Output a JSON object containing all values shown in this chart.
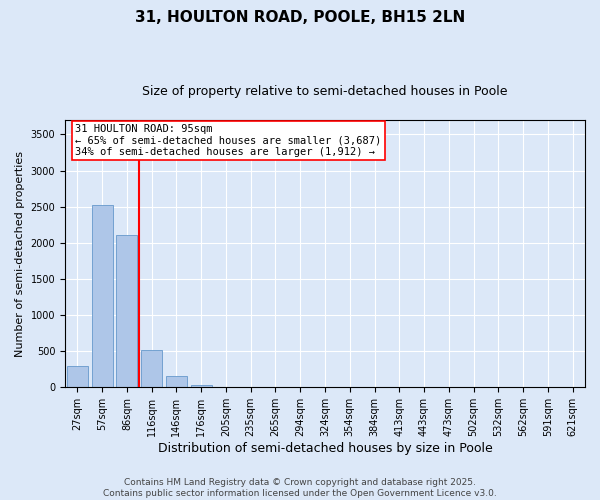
{
  "title": "31, HOULTON ROAD, POOLE, BH15 2LN",
  "subtitle": "Size of property relative to semi-detached houses in Poole",
  "xlabel": "Distribution of semi-detached houses by size in Poole",
  "ylabel": "Number of semi-detached properties",
  "categories": [
    "27sqm",
    "57sqm",
    "86sqm",
    "116sqm",
    "146sqm",
    "176sqm",
    "205sqm",
    "235sqm",
    "265sqm",
    "294sqm",
    "324sqm",
    "354sqm",
    "384sqm",
    "413sqm",
    "443sqm",
    "473sqm",
    "502sqm",
    "532sqm",
    "562sqm",
    "591sqm",
    "621sqm"
  ],
  "values": [
    290,
    2530,
    2110,
    510,
    155,
    30,
    0,
    0,
    0,
    0,
    0,
    0,
    0,
    0,
    0,
    0,
    0,
    0,
    0,
    0,
    0
  ],
  "bar_color": "#aec6e8",
  "bar_edge_color": "#6699cc",
  "vline_color": "red",
  "vline_x_index": 2,
  "annotation_text_line1": "31 HOULTON ROAD: 95sqm",
  "annotation_text_line2": "← 65% of semi-detached houses are smaller (3,687)",
  "annotation_text_line3": "34% of semi-detached houses are larger (1,912) →",
  "ylim": [
    0,
    3700
  ],
  "yticks": [
    0,
    500,
    1000,
    1500,
    2000,
    2500,
    3000,
    3500
  ],
  "bg_color": "#dce8f8",
  "plot_bg_color": "#dce8f8",
  "footer_line1": "Contains HM Land Registry data © Crown copyright and database right 2025.",
  "footer_line2": "Contains public sector information licensed under the Open Government Licence v3.0.",
  "title_fontsize": 11,
  "subtitle_fontsize": 9,
  "xlabel_fontsize": 9,
  "ylabel_fontsize": 8,
  "footer_fontsize": 6.5,
  "annotation_fontsize": 7.5,
  "tick_fontsize": 7
}
